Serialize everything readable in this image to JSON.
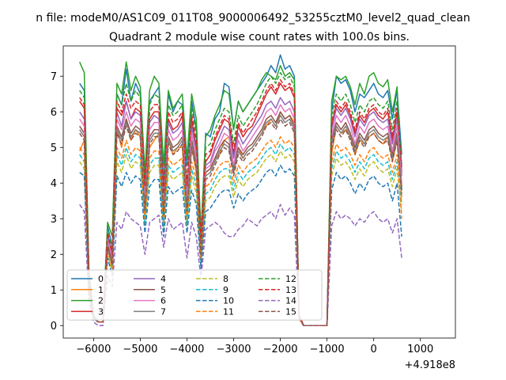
{
  "chart_data": {
    "type": "line",
    "suptitle": "n file: modeM0/AS1C09_011T08_9000006492_53255cztM0_level2_quad_clean",
    "title": "Quadrant 2 module wise count rates with 100.0s bins.",
    "xlabel": "",
    "ylabel": "",
    "x_offset_label": "+4.918e8",
    "xlim": [
      -6650,
      1750
    ],
    "ylim": [
      -0.35,
      7.85
    ],
    "x_ticks": [
      -6000,
      -5000,
      -4000,
      -3000,
      -2000,
      -1000,
      0,
      1000
    ],
    "x_tick_labels": [
      "−6000",
      "−5000",
      "−4000",
      "−3000",
      "−2000",
      "−1000",
      "0",
      "1000"
    ],
    "y_ticks": [
      0,
      1,
      2,
      3,
      4,
      5,
      6,
      7
    ],
    "y_tick_labels": [
      "0",
      "1",
      "2",
      "3",
      "4",
      "5",
      "6",
      "7"
    ],
    "x_start": -6300,
    "x_step": 100,
    "grid": false,
    "legend_position": "lower-left",
    "legend_columns": 4,
    "series": [
      {
        "name": "0",
        "color": "#1f77b4",
        "dash": "solid",
        "values": [
          6.8,
          6.6,
          1.5,
          0.3,
          0.1,
          0.1,
          2.8,
          2.2,
          6.5,
          6.2,
          7.2,
          6.3,
          6.8,
          6.5,
          4.2,
          6.3,
          6.5,
          6.7,
          4.0,
          6.5,
          6.0,
          6.3,
          6.2,
          4.5,
          6.3,
          5.5,
          2.5,
          5.4,
          5.3,
          5.8,
          6.0,
          6.8,
          6.7,
          5.5,
          6.3,
          6.0,
          6.2,
          6.4,
          6.6,
          6.8,
          7.0,
          7.3,
          7.1,
          7.6,
          7.2,
          7.3,
          7.0,
          0.3,
          0.0,
          0.0,
          0.0,
          0.0,
          0.0,
          0.0,
          6.0,
          7.0,
          6.8,
          6.9,
          6.6,
          6.0,
          6.5,
          6.4,
          6.6,
          6.8,
          6.5,
          6.4,
          6.6,
          5.8,
          6.6,
          4.8
        ]
      },
      {
        "name": "1",
        "color": "#ff7f0e",
        "dash": "solid",
        "values": [
          4.9,
          5.2,
          1.3,
          0.2,
          0.1,
          0.1,
          2.5,
          1.8,
          5.5,
          5.0,
          5.8,
          5.2,
          5.5,
          5.3,
          3.0,
          5.0,
          5.2,
          5.4,
          3.1,
          5.2,
          4.8,
          5.0,
          5.0,
          3.2,
          5.0,
          4.3,
          2.0,
          4.3,
          4.4,
          4.7,
          4.8,
          5.2,
          5.3,
          4.4,
          5.0,
          4.7,
          4.9,
          5.0,
          5.2,
          5.4,
          5.6,
          5.8,
          5.6,
          6.0,
          5.8,
          5.9,
          5.7,
          0.2,
          0.0,
          0.0,
          0.0,
          0.0,
          0.0,
          0.0,
          4.8,
          5.6,
          5.4,
          5.5,
          5.3,
          4.8,
          5.2,
          5.1,
          5.3,
          5.4,
          5.2,
          5.1,
          5.3,
          4.6,
          5.2,
          3.6
        ]
      },
      {
        "name": "2",
        "color": "#2ca02c",
        "dash": "solid",
        "values": [
          7.4,
          7.1,
          1.5,
          0.3,
          0.1,
          0.1,
          2.9,
          2.5,
          6.8,
          6.5,
          7.4,
          6.6,
          7.0,
          6.7,
          4.3,
          6.6,
          7.0,
          6.8,
          4.5,
          6.6,
          6.1,
          6.3,
          6.5,
          4.7,
          6.5,
          5.8,
          2.6,
          5.3,
          5.5,
          5.9,
          6.2,
          6.6,
          6.5,
          5.5,
          6.3,
          6.0,
          6.2,
          6.4,
          6.6,
          6.9,
          7.1,
          7.0,
          6.9,
          7.3,
          7.0,
          7.1,
          6.9,
          0.3,
          0.0,
          0.0,
          0.0,
          0.0,
          0.0,
          0.0,
          6.3,
          7.0,
          6.9,
          7.0,
          6.7,
          6.2,
          6.8,
          6.5,
          7.0,
          7.1,
          6.8,
          6.7,
          6.9,
          6.0,
          6.7,
          3.8
        ]
      },
      {
        "name": "3",
        "color": "#d62728",
        "dash": "solid",
        "values": [
          6.3,
          6.1,
          1.3,
          0.2,
          0.1,
          0.1,
          2.5,
          2.0,
          6.1,
          5.9,
          6.3,
          5.8,
          6.1,
          6.0,
          3.8,
          5.8,
          6.0,
          6.0,
          3.5,
          5.8,
          5.5,
          5.6,
          5.9,
          3.8,
          5.8,
          5.0,
          2.3,
          4.6,
          4.8,
          5.2,
          5.5,
          5.8,
          5.7,
          4.8,
          5.6,
          5.3,
          5.5,
          5.6,
          5.9,
          6.2,
          6.5,
          6.7,
          6.5,
          6.8,
          6.6,
          6.7,
          6.4,
          0.3,
          0.0,
          0.0,
          0.0,
          0.0,
          0.0,
          0.0,
          5.6,
          6.2,
          6.0,
          6.2,
          5.9,
          5.4,
          5.9,
          5.7,
          6.0,
          6.1,
          5.9,
          5.8,
          6.0,
          5.2,
          6.0,
          4.3
        ]
      },
      {
        "name": "4",
        "color": "#9467bd",
        "dash": "solid",
        "values": [
          6.0,
          5.8,
          1.2,
          0.2,
          0.1,
          0.1,
          2.6,
          1.9,
          6.0,
          5.6,
          6.3,
          5.8,
          6.0,
          5.9,
          3.6,
          5.7,
          5.9,
          5.8,
          3.6,
          5.7,
          5.4,
          5.5,
          5.7,
          3.6,
          5.6,
          4.9,
          2.2,
          4.5,
          4.6,
          5.0,
          5.3,
          5.6,
          5.5,
          4.7,
          5.4,
          5.1,
          5.3,
          5.5,
          5.7,
          5.9,
          6.2,
          6.3,
          6.1,
          6.4,
          6.2,
          6.3,
          6.0,
          0.3,
          0.0,
          0.0,
          0.0,
          0.0,
          0.0,
          0.0,
          5.5,
          6.1,
          5.9,
          6.1,
          5.8,
          5.3,
          5.8,
          5.6,
          5.9,
          6.0,
          5.8,
          5.7,
          5.8,
          5.1,
          5.8,
          4.2
        ]
      },
      {
        "name": "5",
        "color": "#8c564b",
        "dash": "solid",
        "values": [
          5.6,
          5.4,
          1.1,
          0.2,
          0.1,
          0.1,
          2.3,
          1.8,
          5.6,
          5.3,
          5.8,
          5.4,
          5.6,
          5.5,
          3.4,
          5.3,
          5.5,
          5.5,
          3.3,
          5.3,
          5.0,
          5.1,
          5.3,
          3.4,
          5.2,
          4.6,
          2.1,
          4.3,
          4.4,
          4.7,
          5.0,
          5.2,
          5.1,
          4.4,
          5.0,
          4.8,
          5.0,
          5.1,
          5.3,
          5.5,
          5.8,
          5.9,
          5.7,
          6.0,
          5.8,
          5.9,
          5.6,
          0.3,
          0.0,
          0.0,
          0.0,
          0.0,
          0.0,
          0.0,
          5.2,
          5.7,
          5.5,
          5.7,
          5.4,
          5.0,
          5.4,
          5.2,
          5.5,
          5.6,
          5.4,
          5.3,
          5.4,
          4.8,
          5.4,
          3.9
        ]
      },
      {
        "name": "6",
        "color": "#e377c2",
        "dash": "solid",
        "values": [
          5.8,
          5.6,
          1.2,
          0.2,
          0.1,
          0.1,
          2.4,
          1.9,
          5.8,
          5.5,
          6.0,
          5.6,
          5.8,
          5.7,
          3.5,
          5.5,
          5.7,
          5.7,
          3.4,
          5.5,
          5.2,
          5.3,
          5.5,
          3.5,
          5.4,
          4.7,
          2.2,
          4.4,
          4.5,
          4.9,
          5.1,
          5.4,
          5.3,
          4.5,
          5.2,
          4.9,
          5.1,
          5.3,
          5.5,
          5.7,
          6.0,
          6.1,
          5.9,
          6.2,
          6.0,
          6.1,
          5.8,
          0.3,
          0.0,
          0.0,
          0.0,
          0.0,
          0.0,
          0.0,
          5.3,
          5.9,
          5.7,
          5.9,
          5.6,
          5.1,
          5.6,
          5.4,
          5.7,
          5.8,
          5.6,
          5.5,
          5.6,
          4.9,
          5.6,
          4.0
        ]
      },
      {
        "name": "7",
        "color": "#7f7f7f",
        "dash": "solid",
        "values": [
          5.5,
          5.3,
          1.1,
          0.2,
          0.1,
          0.1,
          2.2,
          1.7,
          5.5,
          5.2,
          5.7,
          5.3,
          5.5,
          5.4,
          3.3,
          5.2,
          5.4,
          5.4,
          3.2,
          5.2,
          4.9,
          5.0,
          5.2,
          3.3,
          5.1,
          4.5,
          2.0,
          4.2,
          4.3,
          4.6,
          4.9,
          5.1,
          5.0,
          4.3,
          4.9,
          4.7,
          4.9,
          5.0,
          5.2,
          5.4,
          5.7,
          5.8,
          5.6,
          5.9,
          5.7,
          5.8,
          5.5,
          0.3,
          0.0,
          0.0,
          0.0,
          0.0,
          0.0,
          0.0,
          5.1,
          5.6,
          5.4,
          5.6,
          5.3,
          4.9,
          5.3,
          5.1,
          5.4,
          5.5,
          5.3,
          5.2,
          5.3,
          4.7,
          5.3,
          3.8
        ]
      },
      {
        "name": "8",
        "color": "#bcbd22",
        "dash": "dashed",
        "values": [
          4.6,
          4.4,
          1.0,
          0.2,
          0.1,
          0.1,
          2.0,
          1.5,
          4.6,
          4.3,
          4.8,
          4.4,
          4.6,
          4.5,
          2.8,
          4.3,
          4.5,
          4.5,
          2.7,
          4.3,
          4.1,
          4.2,
          4.3,
          2.8,
          4.2,
          3.7,
          1.7,
          3.5,
          3.6,
          3.9,
          4.1,
          4.2,
          4.2,
          3.6,
          4.1,
          3.9,
          4.1,
          4.2,
          4.3,
          4.5,
          4.7,
          4.8,
          4.6,
          4.9,
          4.7,
          4.8,
          4.6,
          0.2,
          0.0,
          0.0,
          0.0,
          0.0,
          0.0,
          0.0,
          4.2,
          4.7,
          4.5,
          4.6,
          4.4,
          4.1,
          4.4,
          4.2,
          4.5,
          4.6,
          4.4,
          4.3,
          4.4,
          3.9,
          4.4,
          3.2
        ]
      },
      {
        "name": "9",
        "color": "#17becf",
        "dash": "dashed",
        "values": [
          4.8,
          4.6,
          1.0,
          0.2,
          0.1,
          0.1,
          2.1,
          1.6,
          4.8,
          4.5,
          5.0,
          4.6,
          4.8,
          4.7,
          2.9,
          4.5,
          4.7,
          4.7,
          2.8,
          4.5,
          4.3,
          4.4,
          4.5,
          2.9,
          4.4,
          3.9,
          1.8,
          3.7,
          3.8,
          4.1,
          4.3,
          4.4,
          4.4,
          3.8,
          4.3,
          4.1,
          4.3,
          4.4,
          4.5,
          4.7,
          4.9,
          5.0,
          4.8,
          5.1,
          4.9,
          5.0,
          4.8,
          0.2,
          0.0,
          0.0,
          0.0,
          0.0,
          0.0,
          0.0,
          4.4,
          4.9,
          4.7,
          4.8,
          4.6,
          4.3,
          4.6,
          4.4,
          4.7,
          4.8,
          4.6,
          4.5,
          4.6,
          4.1,
          4.6,
          3.4
        ]
      },
      {
        "name": "10",
        "color": "#1f77b4",
        "dash": "dashed",
        "values": [
          4.3,
          4.2,
          0.9,
          0.2,
          0.1,
          0.1,
          1.9,
          1.4,
          4.2,
          3.9,
          4.3,
          4.0,
          4.2,
          4.1,
          2.6,
          3.9,
          4.1,
          4.1,
          2.5,
          3.9,
          3.7,
          3.8,
          3.9,
          2.6,
          3.8,
          3.4,
          1.6,
          3.2,
          3.3,
          3.5,
          3.7,
          3.8,
          3.8,
          3.3,
          3.7,
          3.5,
          3.7,
          3.8,
          3.9,
          4.1,
          4.3,
          4.4,
          4.2,
          4.5,
          4.3,
          4.4,
          4.2,
          0.2,
          0.0,
          0.0,
          0.0,
          0.0,
          0.0,
          0.0,
          3.8,
          4.3,
          4.1,
          4.2,
          4.0,
          3.7,
          4.0,
          3.8,
          4.1,
          4.2,
          4.0,
          3.9,
          4.0,
          3.5,
          4.0,
          2.5
        ]
      },
      {
        "name": "11",
        "color": "#ff7f0e",
        "dash": "dashed",
        "values": [
          5.0,
          4.8,
          1.0,
          0.2,
          0.1,
          0.1,
          2.1,
          1.6,
          5.0,
          4.7,
          5.2,
          4.8,
          5.0,
          4.9,
          3.0,
          4.7,
          4.9,
          4.9,
          2.9,
          4.7,
          4.5,
          4.6,
          4.7,
          3.0,
          4.6,
          4.1,
          1.9,
          3.9,
          4.0,
          4.3,
          4.5,
          4.6,
          4.6,
          4.0,
          4.5,
          4.3,
          4.5,
          4.6,
          4.7,
          4.9,
          5.1,
          5.2,
          5.0,
          5.3,
          5.1,
          5.2,
          5.0,
          0.2,
          0.0,
          0.0,
          0.0,
          0.0,
          0.0,
          0.0,
          4.6,
          5.1,
          4.9,
          5.0,
          4.8,
          4.5,
          4.8,
          4.6,
          4.9,
          5.0,
          4.8,
          4.7,
          4.8,
          4.3,
          4.8,
          3.0
        ]
      },
      {
        "name": "12",
        "color": "#2ca02c",
        "dash": "dashed",
        "values": [
          6.6,
          6.4,
          1.4,
          0.3,
          0.1,
          0.1,
          2.7,
          2.1,
          6.5,
          6.2,
          6.8,
          6.3,
          6.6,
          6.4,
          4.0,
          6.2,
          6.5,
          6.4,
          3.9,
          6.2,
          5.9,
          6.0,
          6.2,
          4.0,
          6.1,
          5.4,
          2.5,
          5.0,
          5.1,
          5.5,
          5.8,
          6.1,
          6.0,
          5.1,
          5.9,
          5.6,
          5.8,
          6.0,
          6.2,
          6.5,
          6.8,
          7.0,
          6.8,
          7.1,
          6.9,
          7.0,
          6.7,
          0.3,
          0.0,
          0.0,
          0.0,
          0.0,
          0.0,
          0.0,
          5.9,
          6.5,
          6.3,
          6.5,
          6.2,
          5.7,
          6.2,
          6.0,
          6.3,
          6.4,
          6.2,
          6.1,
          6.3,
          5.5,
          6.3,
          4.5
        ]
      },
      {
        "name": "13",
        "color": "#d62728",
        "dash": "dashed",
        "values": [
          6.4,
          6.2,
          1.3,
          0.2,
          0.1,
          0.1,
          2.6,
          2.0,
          6.3,
          6.0,
          6.5,
          6.1,
          6.3,
          6.2,
          3.9,
          6.0,
          6.2,
          6.2,
          3.7,
          6.0,
          5.7,
          5.8,
          6.0,
          3.9,
          5.9,
          5.2,
          2.4,
          4.8,
          4.9,
          5.3,
          5.6,
          5.9,
          5.8,
          4.9,
          5.7,
          5.4,
          5.6,
          5.8,
          6.0,
          6.3,
          6.6,
          6.8,
          6.6,
          6.9,
          6.7,
          6.8,
          6.5,
          0.3,
          0.0,
          0.0,
          0.0,
          0.0,
          0.0,
          0.0,
          5.7,
          6.3,
          6.1,
          6.3,
          6.0,
          5.5,
          6.0,
          5.8,
          6.1,
          6.2,
          6.0,
          5.9,
          6.1,
          5.3,
          6.1,
          4.4
        ]
      },
      {
        "name": "14",
        "color": "#9467bd",
        "dash": "dashed",
        "values": [
          3.4,
          3.2,
          0.7,
          0.1,
          0.0,
          0.0,
          1.4,
          1.1,
          2.9,
          2.7,
          3.2,
          3.0,
          2.9,
          2.8,
          2.0,
          2.9,
          3.0,
          3.1,
          2.2,
          3.0,
          2.7,
          2.8,
          2.9,
          1.9,
          2.9,
          2.5,
          1.3,
          2.7,
          2.8,
          2.9,
          2.8,
          2.6,
          2.5,
          2.5,
          2.7,
          2.8,
          3.0,
          2.9,
          2.8,
          3.0,
          3.1,
          3.2,
          3.0,
          3.4,
          3.1,
          3.3,
          3.1,
          0.2,
          0.0,
          0.0,
          0.0,
          0.0,
          0.0,
          0.0,
          2.8,
          3.2,
          3.0,
          3.1,
          3.0,
          2.8,
          3.0,
          2.9,
          3.1,
          3.2,
          3.0,
          2.9,
          3.0,
          2.6,
          3.0,
          1.9
        ]
      },
      {
        "name": "15",
        "color": "#8c564b",
        "dash": "dashed",
        "values": [
          5.4,
          5.2,
          1.1,
          0.2,
          0.1,
          0.1,
          2.2,
          1.7,
          5.4,
          5.1,
          5.6,
          5.2,
          5.4,
          5.3,
          3.2,
          5.1,
          5.3,
          5.3,
          3.1,
          5.1,
          4.8,
          4.9,
          5.1,
          3.2,
          5.0,
          4.4,
          2.0,
          4.1,
          4.2,
          4.5,
          4.8,
          5.0,
          4.9,
          4.2,
          4.8,
          4.6,
          4.8,
          4.9,
          5.1,
          5.3,
          5.6,
          5.7,
          5.5,
          5.8,
          5.6,
          5.7,
          5.4,
          0.3,
          0.0,
          0.0,
          0.0,
          0.0,
          0.0,
          0.0,
          5.0,
          5.5,
          5.3,
          5.5,
          5.2,
          4.8,
          5.2,
          5.0,
          5.3,
          5.4,
          5.2,
          5.1,
          5.2,
          4.6,
          5.2,
          3.7
        ]
      }
    ]
  }
}
